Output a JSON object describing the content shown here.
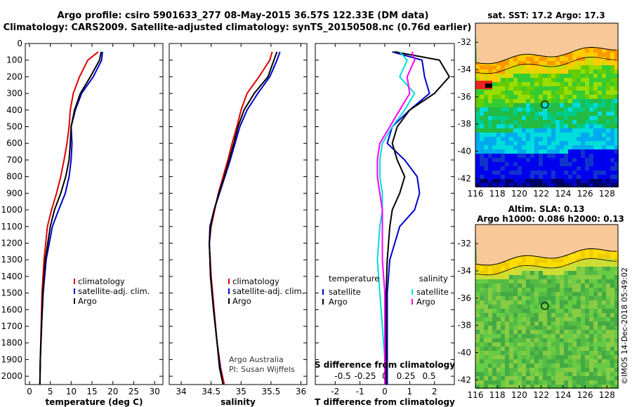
{
  "header": {
    "line1": "Argo profile: csiro 5901633_277 08-May-2015 36.57S 122.33E (DM data)",
    "line2": "Climatology: CARS2009. Satellite-adjusted climatology: synTS_20150508.nc (0.76d earlier)"
  },
  "colors": {
    "climatology": "#e00000",
    "satellite": "#0000cc",
    "argo": "#000000",
    "sat_salinity": "#00dddd",
    "clim_salinity_diff": "#ff00ff",
    "land": "#f8c898"
  },
  "credit": {
    "line1": "Argo Australia",
    "line2": "PI: Susan Wijffels"
  },
  "stamp": "©IMOS 14-Dec-2018 05:49:02",
  "chart_data": [
    {
      "type": "line",
      "name": "temperature",
      "xlabel": "temperature (deg C)",
      "xlim": [
        -1,
        32
      ],
      "ylim": [
        2050,
        0
      ],
      "xticks": [
        0,
        5,
        10,
        15,
        20,
        25,
        30
      ],
      "yticks": [
        0,
        100,
        200,
        300,
        400,
        500,
        600,
        700,
        800,
        900,
        1000,
        1100,
        1200,
        1300,
        1400,
        1500,
        1600,
        1700,
        1800,
        1900,
        2000
      ],
      "legend": [
        "climatology",
        "satellite-adj. clim.",
        "Argo"
      ],
      "series": [
        {
          "name": "climatology",
          "color": "#e00000",
          "x": [
            16.5,
            14.0,
            12.0,
            10.5,
            9.8,
            9.5,
            9.0,
            8.3,
            7.5,
            6.5,
            5.3,
            4.3,
            3.5,
            3.0,
            2.8,
            2.6,
            2.5
          ],
          "y": [
            50,
            100,
            200,
            300,
            400,
            500,
            600,
            700,
            800,
            900,
            1000,
            1100,
            1300,
            1500,
            1700,
            1900,
            2050
          ]
        },
        {
          "name": "satellite-adj. clim.",
          "color": "#0000cc",
          "x": [
            17.5,
            17.3,
            15.3,
            12.5,
            11.0,
            10.0,
            10.2,
            10.0,
            9.5,
            8.6,
            7.0,
            5.5,
            4.0,
            3.3,
            2.9,
            2.6,
            2.5
          ],
          "y": [
            50,
            100,
            200,
            300,
            400,
            500,
            600,
            700,
            800,
            900,
            1000,
            1100,
            1300,
            1500,
            1700,
            1900,
            2050
          ]
        },
        {
          "name": "Argo",
          "color": "#000000",
          "x": [
            17.2,
            16.8,
            14.6,
            12.2,
            10.8,
            10.0,
            9.8,
            9.5,
            8.7,
            7.5,
            6.0,
            5.0,
            3.8,
            3.2,
            2.9,
            2.6,
            2.5
          ],
          "y": [
            50,
            100,
            200,
            300,
            400,
            500,
            600,
            700,
            800,
            900,
            1000,
            1100,
            1300,
            1500,
            1700,
            1900,
            2050
          ]
        }
      ]
    },
    {
      "type": "line",
      "name": "salinity",
      "xlabel": "salinity",
      "xlim": [
        33.8,
        36.1
      ],
      "ylim": [
        2050,
        0
      ],
      "xticks": [
        34,
        34.5,
        35,
        35.5,
        36
      ],
      "xticklabels": [
        "34",
        "34.5",
        "35",
        "35.5",
        "36"
      ],
      "legend": [
        "climatology",
        "satellite-adj. clim.",
        "Argo"
      ],
      "series": [
        {
          "name": "climatology",
          "color": "#e00000",
          "x": [
            35.52,
            35.48,
            35.3,
            35.1,
            35.0,
            34.93,
            34.85,
            34.78,
            34.7,
            34.62,
            34.56,
            34.5,
            34.47,
            34.5,
            34.55,
            34.6,
            34.66,
            34.72
          ],
          "y": [
            50,
            100,
            200,
            300,
            400,
            500,
            600,
            700,
            800,
            900,
            1000,
            1100,
            1200,
            1400,
            1600,
            1800,
            1950,
            2050
          ]
        },
        {
          "name": "satellite-adj. clim.",
          "color": "#0000cc",
          "x": [
            35.65,
            35.6,
            35.48,
            35.28,
            35.1,
            34.98,
            34.9,
            34.82,
            34.73,
            34.64,
            34.55,
            34.48,
            34.47,
            34.49,
            34.54,
            34.6,
            34.65,
            34.7
          ],
          "y": [
            50,
            100,
            200,
            300,
            400,
            500,
            600,
            700,
            800,
            900,
            1000,
            1100,
            1200,
            1400,
            1600,
            1800,
            1950,
            2050
          ]
        },
        {
          "name": "Argo",
          "color": "#000000",
          "x": [
            35.6,
            35.55,
            35.45,
            35.22,
            35.05,
            34.95,
            34.88,
            34.8,
            34.72,
            34.63,
            34.55,
            34.49,
            34.47,
            34.49,
            34.54,
            34.6,
            34.64,
            34.7
          ],
          "y": [
            50,
            100,
            200,
            300,
            400,
            500,
            600,
            700,
            800,
            900,
            1000,
            1100,
            1200,
            1400,
            1600,
            1800,
            1950,
            2050
          ]
        }
      ]
    },
    {
      "type": "line",
      "name": "difference",
      "xlabel": "T difference from climatology",
      "xlabel_top": "S difference from climatology",
      "xlim": [
        -2.8,
        2.8
      ],
      "ylim": [
        2050,
        0
      ],
      "xticks": [
        -2,
        -1,
        0,
        1,
        2
      ],
      "xticks_top": [
        "-0.5",
        "-0.25",
        "0",
        "0.25",
        "0.5"
      ],
      "legend_left_title": "temperature",
      "legend_left": [
        "satellite",
        "Argo"
      ],
      "legend_right_title": "salinity",
      "legend_right": [
        "satellite",
        "Argo"
      ],
      "series": [
        {
          "name": "temperature satellite",
          "color": "#0000cc",
          "x": [
            0.3,
            1.5,
            1.6,
            1.8,
            1.0,
            0.3,
            0.1,
            0.8,
            1.3,
            1.4,
            1.2,
            0.6,
            0.2,
            0.1,
            0.1,
            0.1,
            0.1
          ],
          "y": [
            50,
            100,
            200,
            300,
            400,
            500,
            600,
            700,
            800,
            900,
            1000,
            1100,
            1300,
            1500,
            1700,
            1900,
            2050
          ]
        },
        {
          "name": "temperature Argo",
          "color": "#000000",
          "x": [
            0.4,
            2.2,
            2.6,
            2.0,
            1.0,
            0.5,
            0.3,
            0.5,
            0.8,
            0.6,
            0.3,
            0.2,
            0.1,
            0.05,
            0.05,
            0.05,
            0.05
          ],
          "y": [
            50,
            100,
            200,
            300,
            400,
            500,
            600,
            700,
            800,
            900,
            1000,
            1100,
            1300,
            1500,
            1700,
            1900,
            2050
          ]
        },
        {
          "name": "salinity satellite",
          "color": "#00dddd",
          "x": [
            0.6,
            0.9,
            0.6,
            1.2,
            0.8,
            0.3,
            -0.1,
            -0.2,
            -0.2,
            -0.1,
            -0.1,
            -0.2,
            -0.3,
            -0.2,
            -0.1,
            0.0,
            0.0
          ],
          "y": [
            50,
            100,
            200,
            300,
            400,
            500,
            600,
            700,
            800,
            900,
            1000,
            1100,
            1300,
            1500,
            1700,
            1900,
            2050
          ]
        },
        {
          "name": "salinity Argo",
          "color": "#ff00ff",
          "x": [
            1.1,
            1.2,
            0.9,
            1.0,
            0.6,
            0.2,
            -0.2,
            -0.3,
            -0.3,
            -0.2,
            -0.1,
            -0.1,
            -0.1,
            0.0,
            0.0,
            0.0,
            0.0
          ],
          "y": [
            50,
            100,
            200,
            300,
            400,
            500,
            600,
            700,
            800,
            900,
            1000,
            1100,
            1300,
            1500,
            1700,
            1900,
            2050
          ]
        }
      ]
    },
    {
      "type": "heatmap",
      "name": "sst-map",
      "title": "sat. SST: 17.2 Argo: 17.3",
      "xticks": [
        "116",
        "118",
        "120",
        "122",
        "124",
        "126",
        "128"
      ],
      "yticks": [
        "-32",
        "-34",
        "-36",
        "-38",
        "-40",
        "-42"
      ],
      "xlim": [
        116,
        129
      ],
      "ylim": [
        -42.6,
        -30.6
      ],
      "marker": {
        "lon": 122.33,
        "lat": -36.57
      }
    },
    {
      "type": "heatmap",
      "name": "sla-map",
      "title": "Altim. SLA: 0.13",
      "subtitle": "Argo h1000: 0.086 h2000: 0.13",
      "xticks": [
        "116",
        "118",
        "120",
        "122",
        "124",
        "126",
        "128"
      ],
      "yticks": [
        "-32",
        "-34",
        "-36",
        "-38",
        "-40",
        "-42"
      ],
      "xlim": [
        116,
        129
      ],
      "ylim": [
        -42.6,
        -30.6
      ],
      "marker": {
        "lon": 122.33,
        "lat": -36.57
      }
    }
  ]
}
